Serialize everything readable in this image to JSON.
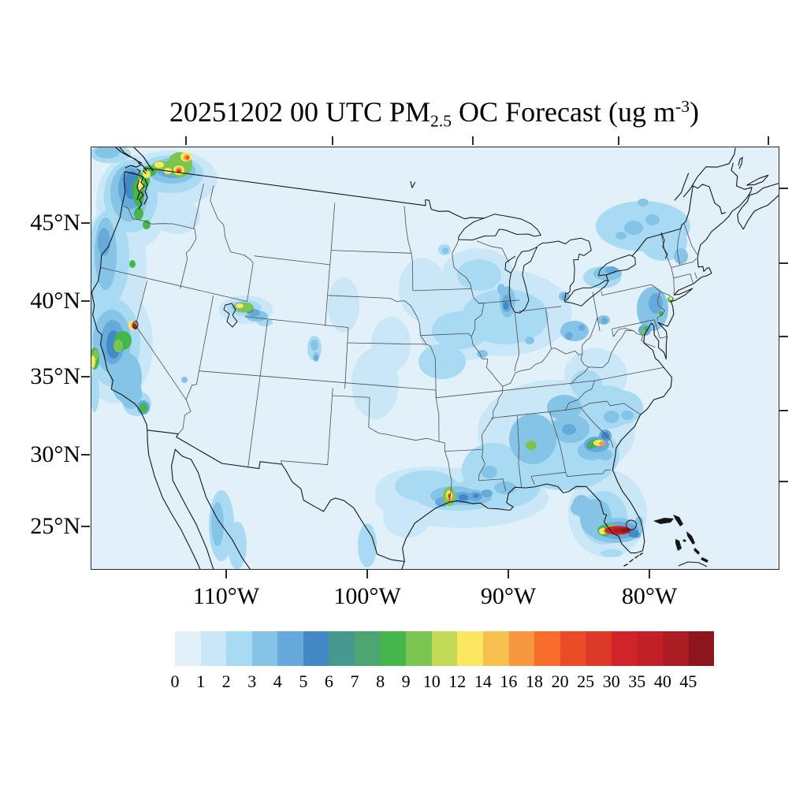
{
  "figure": {
    "title_prefix": "20251202 00 UTC PM",
    "title_subscript": "2.5",
    "title_middle": " OC Forecast (ug m",
    "title_superscript": "-3",
    "title_suffix": ")"
  },
  "axes": {
    "lat_tick_labels": [
      "45°N",
      "40°N",
      "35°N",
      "30°N",
      "25°N"
    ],
    "lon_tick_labels": [
      "110°W",
      "100°W",
      "90°W",
      "80°W"
    ]
  },
  "colorbar": {
    "tick_labels": [
      "0",
      "1",
      "2",
      "3",
      "4",
      "5",
      "6",
      "7",
      "8",
      "9",
      "10",
      "12",
      "14",
      "16",
      "18",
      "20",
      "25",
      "30",
      "35",
      "40",
      "45"
    ],
    "colors": [
      "#E1F0F9",
      "#C9E7F6",
      "#A8DAF3",
      "#85C4E7",
      "#66AADB",
      "#4389C8",
      "#45998F",
      "#4DA571",
      "#45B649",
      "#7BC552",
      "#C2D956",
      "#FAE75F",
      "#F7C04E",
      "#F79740",
      "#F86C2C",
      "#EB4C27",
      "#DC3927",
      "#D0242A",
      "#C21F27",
      "#AC1C23",
      "#8D161C"
    ]
  },
  "chart_data": {
    "type": "heatmap",
    "title": "20251202 00 UTC PM2.5 OC Forecast (ug m-3)",
    "variable": "PM2.5 organic carbon concentration",
    "units": "ug m-3",
    "forecast_cycle": "20251202 00 UTC",
    "region": "Continental United States with adjacent Canada, Mexico, Gulf of Mexico and western Atlantic",
    "x_tick_labels": [
      "110°W",
      "100°W",
      "90°W",
      "80°W"
    ],
    "y_tick_labels": [
      "45°N",
      "40°N",
      "35°N",
      "30°N",
      "25°N"
    ],
    "color_scale_levels": [
      0,
      1,
      2,
      3,
      4,
      5,
      6,
      7,
      8,
      9,
      10,
      12,
      14,
      16,
      18,
      20,
      25,
      30,
      35,
      40,
      45
    ],
    "color_scale_colors": [
      "#E1F0F9",
      "#C9E7F6",
      "#A8DAF3",
      "#85C4E7",
      "#66AADB",
      "#4389C8",
      "#45998F",
      "#4DA571",
      "#45B649",
      "#7BC552",
      "#C2D956",
      "#FAE75F",
      "#F7C04E",
      "#F79740",
      "#F86C2C",
      "#EB4C27",
      "#DC3927",
      "#D0242A",
      "#C21F27",
      "#AC1C23",
      "#8D161C"
    ],
    "legend_position": "bottom",
    "background_level": "0-1 ug m-3 over most of the domain, 1-5 in broad urban, valley and coastal areas",
    "hotspots": [
      {
        "location": "Puget Sound / Seattle and southern British Columbia interior",
        "approx_max": "25-45"
      },
      {
        "location": "Sierra Nevada near Lake Tahoe, CA",
        "approx_max": "25-40"
      },
      {
        "location": "Northern California coast and Central Valley",
        "approx_max": "8-14"
      },
      {
        "location": "Wasatch Front, Utah",
        "approx_max": "12-14"
      },
      {
        "location": "Southeast Texas coast (Houston / Beaumont)",
        "approx_max": "18-25"
      },
      {
        "location": "Central Alabama (Birmingham)",
        "approx_max": "8-10"
      },
      {
        "location": "Eastern Georgia near Savannah",
        "approx_max": "14-18"
      },
      {
        "location": "South Florida west of Lake Okeechobee",
        "approx_max": "40-45+"
      },
      {
        "location": "New York City metro",
        "approx_max": "8-12"
      },
      {
        "location": "Philadelphia and Baltimore-Washington",
        "approx_max": "8-9"
      },
      {
        "location": "Chicago / southern Lake Michigan shore",
        "approx_max": "4-6"
      }
    ]
  }
}
